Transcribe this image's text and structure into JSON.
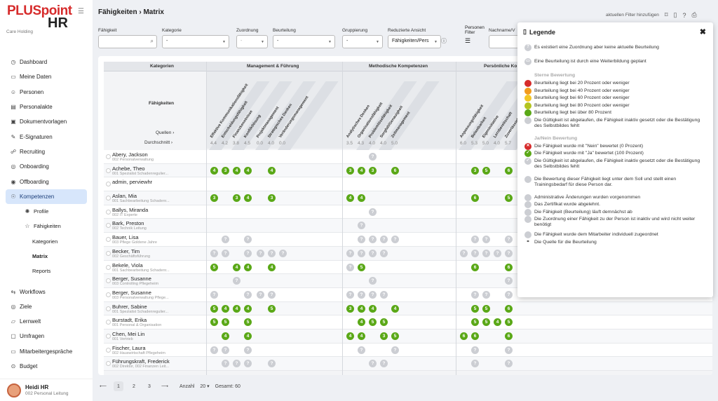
{
  "app": {
    "logo_plus": "PLUSpoint",
    "logo_hr": "HR",
    "company": "Care Holding"
  },
  "nav": [
    {
      "label": "Dashboard",
      "icon": "dashboard-icon",
      "glyph": "◷"
    },
    {
      "label": "Meine Daten",
      "icon": "folder-icon",
      "glyph": "▭"
    },
    {
      "label": "Personen",
      "icon": "people-icon",
      "glyph": "☺"
    },
    {
      "label": "Personalakte",
      "icon": "file-icon",
      "glyph": "▤"
    },
    {
      "label": "Dokumentvorlagen",
      "icon": "template-icon",
      "glyph": "▣"
    },
    {
      "label": "E-Signaturen",
      "icon": "pen-icon",
      "glyph": "✎"
    },
    {
      "label": "Recruiting",
      "icon": "recruiting-icon",
      "glyph": "☍"
    },
    {
      "label": "Onboarding",
      "icon": "onboarding-icon",
      "glyph": "◎"
    },
    {
      "label": "Offboarding",
      "icon": "offboarding-icon",
      "glyph": "◉"
    },
    {
      "label": "Kompetenzen",
      "icon": "competence-icon",
      "glyph": "☉"
    },
    {
      "label": "Profile",
      "icon": "profile-icon",
      "glyph": "✺"
    },
    {
      "label": "Fähigkeiten",
      "icon": "star-icon",
      "glyph": "☆"
    },
    {
      "label": "Kategorien",
      "icon": "",
      "glyph": ""
    },
    {
      "label": "Matrix",
      "icon": "",
      "glyph": ""
    },
    {
      "label": "Reports",
      "icon": "",
      "glyph": ""
    },
    {
      "label": "Workflows",
      "icon": "workflow-icon",
      "glyph": "⇆"
    },
    {
      "label": "Ziele",
      "icon": "target-icon",
      "glyph": "◎"
    },
    {
      "label": "Lernwelt",
      "icon": "learn-icon",
      "glyph": "▱"
    },
    {
      "label": "Umfragen",
      "icon": "survey-icon",
      "glyph": "▢"
    },
    {
      "label": "Mitarbeitergespräche",
      "icon": "chat-icon",
      "glyph": "▭"
    },
    {
      "label": "Budget",
      "icon": "budget-icon",
      "glyph": "⊙"
    },
    {
      "label": "Organisation",
      "icon": "org-icon",
      "glyph": "⊕"
    }
  ],
  "user": {
    "name": "Heidi HR",
    "role": "002 Personal Leitung"
  },
  "page": {
    "title": "Fähigkeiten › Matrix",
    "filter_link": "aktuellen Filter hinzufügen"
  },
  "filters": {
    "faehigkeit": "Fähigkeit",
    "kategorie": "Kategorie",
    "kategorie_val": "-",
    "zuordnung": "Zuordnung",
    "zuordnung_val": "-",
    "beurteilung": "Beurteilung",
    "beurteilung_val": "-",
    "gruppierung": "Gruppierung",
    "gruppierung_val": "-",
    "reduziert": "Reduzierte Ansicht",
    "reduziert_val": "Fähigkeiten/Pers",
    "personen": "Personen",
    "personen2": "Filter",
    "nachname": "Nachname/V"
  },
  "grid": {
    "kategorien": "Kategorien",
    "faehigkeiten": "Fähigkeiten",
    "quellen": "Quellen ›",
    "durchschnitt": "Durchschnitt ›",
    "cat1": "Management & Führung",
    "cat2": "Methodische Kompetenzen",
    "cat3": "Persönliche Ko",
    "skills": [
      "Effektive Kommunikationsfähigkeit",
      "Entscheidungsfähigkeit",
      "Finanzkenntnisse",
      "Konfliktlösung",
      "Projektmanagement",
      "Strategisches Denken",
      "Veränderungsmanagement",
      "Analytisches Denken",
      "Organisationsfähigkeit",
      "Problemlösefähigkeit",
      "Sorgfalt/Genauigkeit",
      "Zeitmanagement",
      "Anpassungsfähigkeit",
      "Belastbarkeit",
      "Eigeninitiative",
      "Lernbereitschaft",
      "Zuverlässigkeit"
    ],
    "averages": [
      "4.4",
      "4.2",
      "3.8",
      "4.5",
      "0.0",
      "4.0",
      "0.0",
      "3.5",
      "4.3",
      "4.0",
      "4.0",
      "5.0",
      "6.0",
      "5.3",
      "5.0",
      "4.0",
      "5.7"
    ]
  },
  "persons": [
    {
      "name": "Abery, Jackson",
      "org": "002 Personalverwaltung",
      "cells": {
        "9": "?"
      }
    },
    {
      "name": "Achebe, Theo",
      "org": "001 Spezialist Schadenregulier...",
      "cells": {
        "0": "4",
        "1": "3",
        "2": "4",
        "3": "4",
        "5": "4",
        "7": "3",
        "8": "4",
        "9": "3",
        "11": "6",
        "13": "3",
        "14": "5",
        "16": "6"
      }
    },
    {
      "name": "admin, perviewhr",
      "org": "",
      "cells": {}
    },
    {
      "name": "Aslan, Mia",
      "org": "001 Sachbearbeitung Schadenr...",
      "cells": {
        "0": "3",
        "2": "3",
        "3": "4",
        "5": "3",
        "7": "4",
        "8": "4",
        "13": "6",
        "16": "5"
      }
    },
    {
      "name": "Ballys, Miranda",
      "org": "002 IT Experte",
      "cells": {
        "9": "?"
      }
    },
    {
      "name": "Bark, Preston",
      "org": "002 Technik Leitung",
      "cells": {
        "8": "?"
      }
    },
    {
      "name": "Bauer, Lisa",
      "org": "003 Pflege Goldene Jahre",
      "cells": {
        "1": "?",
        "3": "?",
        "8": "?",
        "9": "?",
        "10": "?",
        "11": "?",
        "13": "?",
        "14": "?",
        "16": "?"
      }
    },
    {
      "name": "Becker, Tim",
      "org": "002 Geschäftsführung",
      "cells": {
        "0": "?",
        "1": "?",
        "3": "?",
        "4": "?",
        "5": "?",
        "6": "?",
        "7": "?",
        "8": "?",
        "9": "?",
        "10": "?",
        "12": "?",
        "13": "?",
        "14": "?",
        "15": "?",
        "16": "?"
      }
    },
    {
      "name": "Bekele, Viola",
      "org": "001 Sachbearbeitung Schadenr...",
      "cells": {
        "0": "5",
        "2": "4",
        "3": "4",
        "5": "4",
        "7": "?",
        "8": "5",
        "13": "6",
        "16": "6"
      }
    },
    {
      "name": "Berger, Susanne",
      "org": "003 Controlling Pflegeheim",
      "cells": {
        "2": "?",
        "9": "?",
        "16": "?"
      }
    },
    {
      "name": "Berger, Susanne",
      "org": "003 Personalverwaltung Pflege...",
      "cells": {
        "0": "?",
        "3": "?",
        "4": "?",
        "5": "?",
        "7": "?",
        "8": "?",
        "9": "?",
        "10": "?",
        "13": "?",
        "14": "?",
        "16": "?"
      }
    },
    {
      "name": "Buhrer, Sabine",
      "org": "001 Spezialist Schadenregulier...",
      "cells": {
        "0": "5",
        "1": "4",
        "2": "4",
        "3": "4",
        "5": "5",
        "7": "3",
        "8": "4",
        "9": "4",
        "11": "4",
        "13": "5",
        "14": "5",
        "16": "6"
      }
    },
    {
      "name": "Burstadt, Erika",
      "org": "001 Personal & Organisation",
      "cells": {
        "0": "5",
        "1": "5",
        "3": "5",
        "8": "4",
        "9": "5",
        "10": "5",
        "13": "5",
        "14": "5",
        "15": "4",
        "16": "5"
      }
    },
    {
      "name": "Chen, Mei Lin",
      "org": "001 Vertrieb",
      "cells": {
        "1": "4",
        "3": "4",
        "7": "4",
        "8": "4",
        "10": "3",
        "11": "5",
        "12": "6",
        "13": "6",
        "16": "6"
      }
    },
    {
      "name": "Fischer, Laura",
      "org": "002 Hauswirtschaft Pflegeheim",
      "cells": {
        "0": "?",
        "1": "?",
        "3": "?",
        "8": "?",
        "11": "?",
        "13": "?",
        "16": "?"
      }
    },
    {
      "name": "Führungskraft, Frederick",
      "org": "002 Direktor, 002 Finanzen Leit...",
      "cells": {
        "1": "?",
        "2": "?",
        "3": "?",
        "5": "?",
        "9": "?",
        "10": "?",
        "13": "?",
        "16": "?"
      }
    }
  ],
  "pager": {
    "prev": "⟵",
    "p1": "1",
    "p2": "2",
    "p3": "3",
    "next": "⟶",
    "anzahl": "Anzahl",
    "anzahl_val": "20",
    "gesamt": "Gesamt: 60"
  },
  "legend": {
    "title": "Legende",
    "items": [
      {
        "t": "Es existiert eine Zuordnung aber keine aktuelle Beurteilung",
        "dot": "?",
        "c": "#ccced3"
      },
      {
        "t": "Eine Beurteilung ist durch eine Weiterbildung geplant",
        "dot": "▭",
        "c": "#ccced3"
      },
      {
        "t": "Sterne Bewertung",
        "sec": true
      },
      {
        "t": "Beurteilung liegt bei 20 Prozent oder weniger",
        "dot": "",
        "c": "#d62b2b"
      },
      {
        "t": "Beurteilung liegt bei 40 Prozent oder weniger",
        "dot": "",
        "c": "#f29b1d"
      },
      {
        "t": "Beurteilung liegt bei 60 Prozent oder weniger",
        "dot": "",
        "c": "#f3c623"
      },
      {
        "t": "Beurteilung liegt bei 80 Prozent oder weniger",
        "dot": "",
        "c": "#b3c420"
      },
      {
        "t": "Beurteilung liegt bei über 80 Prozent",
        "dot": "",
        "c": "#5aa817"
      },
      {
        "t": "Die Gültigkeit ist abgelaufen, die Fähigkeit inaktiv gesetzt oder die Bestätigung des Selbstbildes fehlt",
        "dot": "",
        "c": "#ccced3"
      },
      {
        "t": "Ja/Nein Bewertung",
        "sec": true
      },
      {
        "t": "Die Fähigkeit wurde mit \"Nein\" bewertet (0 Prozent)",
        "dot": "✕",
        "c": "#d62b2b"
      },
      {
        "t": "Die Fähigkeit wurde mit \"Ja\" bewertet (100 Prozent)",
        "dot": "✓",
        "c": "#5aa817"
      },
      {
        "t": "Die Gültigkeit ist abgelaufen, die Fähigkeit inaktiv gesetzt oder die Bestätigung des Selbstbildes fehlt",
        "dot": "✓",
        "c": "#ccced3"
      },
      {
        "t": "Die Bewertung dieser Fähigkeit liegt unter dem Soll und stellt einen Trainingsbedarf für diese Person dar.",
        "dot": "",
        "c": "#ccced3"
      },
      {
        "t": "Administrative Änderungen wurden vorgenommen",
        "dot": "",
        "c": "#ccced3"
      },
      {
        "t": "Das Zertifikat wurde abgelehnt.",
        "dot": "",
        "c": "#ccced3"
      },
      {
        "t": "Die Fähigkeit (Beurteilung) läuft demnächst ab",
        "dot": "",
        "c": "#ccced3"
      },
      {
        "t": "Die Zuordnung einer Fähigkeit zu der Person ist inaktiv und wird nicht weiter benötigt",
        "dot": "",
        "c": "#ccced3"
      },
      {
        "t": "Die Fähigkeit wurde dem Mitarbeiter individuell zugeordnet",
        "dot": "",
        "c": "#ccced3"
      },
      {
        "t": "Die Quelle für die Beurteilung",
        "dot": "⚭",
        "c": "#fff"
      }
    ]
  },
  "colors": {
    "green": "#5aa817",
    "accent": "#d7e6fb",
    "brand_red": "#d62b2b"
  }
}
